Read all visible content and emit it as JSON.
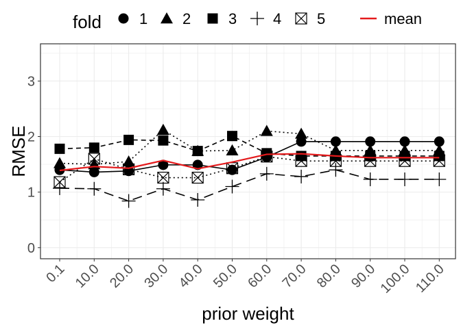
{
  "chart_data": {
    "type": "line",
    "xlabel": "prior weight",
    "ylabel": "RMSE",
    "categories": [
      "0.1",
      "10.0",
      "20.0",
      "30.0",
      "40.0",
      "50.0",
      "60.0",
      "70.0",
      "80.0",
      "90.0",
      "100.0",
      "110.0"
    ],
    "yticks": [
      "0",
      "1",
      "2",
      "3"
    ],
    "ylim": [
      -0.2,
      3.67
    ],
    "grid": true,
    "legend": {
      "position": "top",
      "title": "fold",
      "entries": [
        "1",
        "2",
        "3",
        "4",
        "5"
      ],
      "mean_label": "mean"
    },
    "series": [
      {
        "name": "1",
        "marker": "circle",
        "dash": "solid",
        "values": [
          1.4,
          1.36,
          1.38,
          1.49,
          1.49,
          1.4,
          1.63,
          1.91,
          1.91,
          1.91,
          1.91,
          1.91
        ]
      },
      {
        "name": "2",
        "marker": "triangle",
        "dash": "dotted",
        "values": [
          1.52,
          1.5,
          1.55,
          2.12,
          1.74,
          1.75,
          2.1,
          2.05,
          1.75,
          1.75,
          1.75,
          1.75
        ]
      },
      {
        "name": "3",
        "marker": "square",
        "dash": "dashed",
        "values": [
          1.78,
          1.8,
          1.94,
          1.93,
          1.74,
          2.01,
          1.7,
          1.65,
          1.65,
          1.65,
          1.65,
          1.65
        ]
      },
      {
        "name": "4",
        "marker": "plus",
        "dash": "longdash",
        "values": [
          1.07,
          1.06,
          0.84,
          1.06,
          0.86,
          1.1,
          1.33,
          1.28,
          1.4,
          1.23,
          1.23,
          1.23
        ]
      },
      {
        "name": "5",
        "marker": "squarecross",
        "dash": "dotted",
        "values": [
          1.18,
          1.6,
          1.41,
          1.26,
          1.26,
          1.43,
          1.64,
          1.56,
          1.56,
          1.56,
          1.56,
          1.56
        ]
      }
    ],
    "mean": {
      "name": "mean",
      "color": "#e41a1c",
      "values": [
        1.39,
        1.46,
        1.43,
        1.57,
        1.42,
        1.54,
        1.68,
        1.69,
        1.65,
        1.62,
        1.62,
        1.62
      ]
    },
    "colors": {
      "series": "#000000",
      "mean": "#e41a1c",
      "grid": "#ebebeb",
      "panel_border": "#333333",
      "tick_text": "#4d4d4d"
    }
  }
}
